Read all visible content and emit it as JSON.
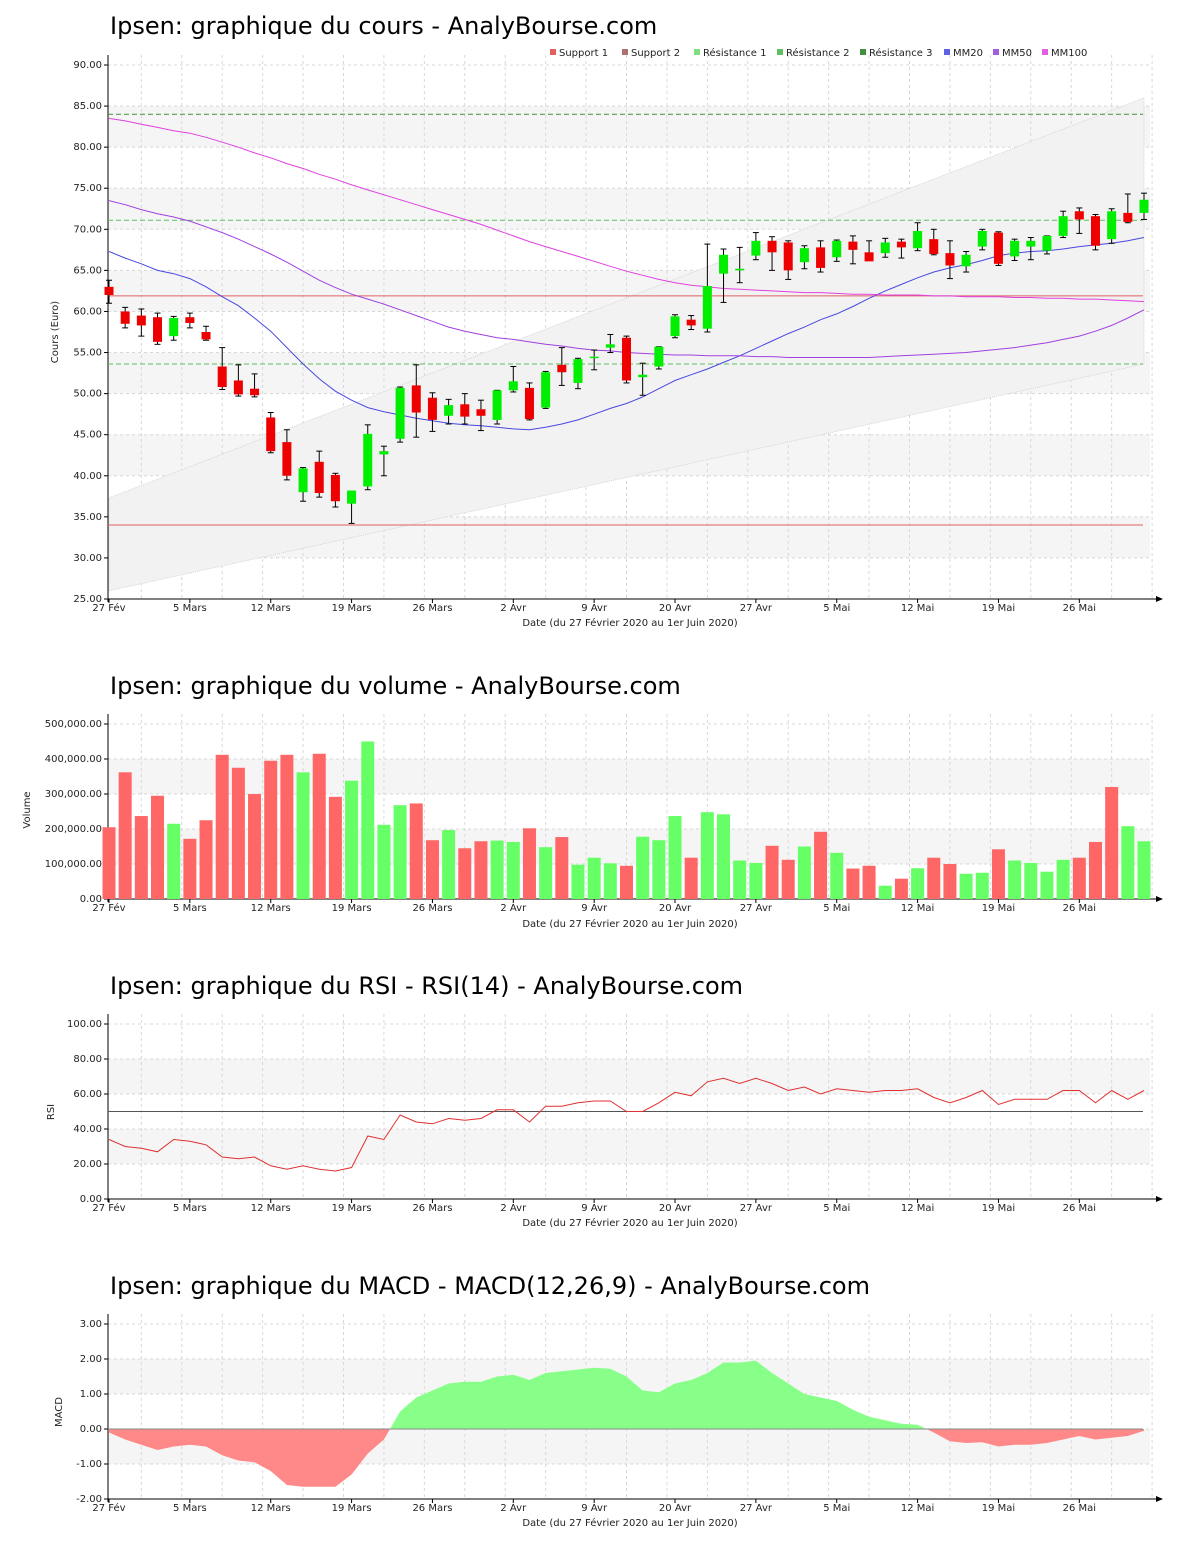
{
  "chart_data": [
    {
      "type": "candlestick",
      "title": "Ipsen: graphique du cours - AnalyBourse.com",
      "xlabel": "Date (du 27 Février 2020 au 1er Juin 2020)",
      "ylabel": "Cours (Euro)",
      "ylim": [
        25,
        90
      ],
      "y_ticks": [
        "25.00",
        "30.00",
        "35.00",
        "40.00",
        "45.00",
        "50.00",
        "55.00",
        "60.00",
        "65.00",
        "70.00",
        "75.00",
        "80.00",
        "85.00",
        "90.00"
      ],
      "x_ticks": [
        {
          "i": 0,
          "label": "27 Fév"
        },
        {
          "i": 5,
          "label": "5 Mars"
        },
        {
          "i": 10,
          "label": "12 Mars"
        },
        {
          "i": 15,
          "label": "19 Mars"
        },
        {
          "i": 20,
          "label": "26 Mars"
        },
        {
          "i": 25,
          "label": "2 Avr"
        },
        {
          "i": 30,
          "label": "9 Avr"
        },
        {
          "i": 35,
          "label": "20 Avr"
        },
        {
          "i": 40,
          "label": "27 Avr"
        },
        {
          "i": 45,
          "label": "5 Mai"
        },
        {
          "i": 50,
          "label": "12 Mai"
        },
        {
          "i": 55,
          "label": "19 Mai"
        },
        {
          "i": 60,
          "label": "26 Mai"
        }
      ],
      "legend": [
        "Support 1",
        "Support 2",
        "Résistance 1",
        "Résistance 2",
        "Résistance 3",
        "MM20",
        "MM50",
        "MM100"
      ],
      "legend_colors": [
        "#e06060",
        "#b07070",
        "#80e080",
        "#60c060",
        "#409040",
        "#6060e0",
        "#a060e0",
        "#e060e0"
      ],
      "up_color": "#00ee00",
      "down_color": "#ee0000",
      "levels": {
        "support_1": 34.0,
        "support_2": 61.9,
        "resistance_1": 53.6,
        "resistance_2": 71.1,
        "resistance_3": 84.0
      },
      "channel": {
        "lower": [
          26.0,
          53.6
        ],
        "upper": [
          37.3,
          86.0
        ]
      },
      "candles": [
        [
          63.0,
          63.8,
          61.0,
          62.0
        ],
        [
          60.0,
          60.5,
          58.0,
          58.5
        ],
        [
          59.5,
          60.3,
          57.0,
          58.3
        ],
        [
          59.3,
          59.8,
          56.0,
          56.3
        ],
        [
          57.0,
          59.4,
          56.5,
          59.2
        ],
        [
          59.3,
          59.8,
          58.0,
          58.6
        ],
        [
          57.5,
          58.2,
          56.5,
          56.6
        ],
        [
          53.3,
          55.6,
          50.5,
          50.8
        ],
        [
          51.6,
          53.5,
          49.7,
          49.9
        ],
        [
          50.6,
          52.4,
          49.6,
          49.8
        ],
        [
          47.1,
          47.7,
          42.8,
          43.0
        ],
        [
          44.1,
          45.6,
          39.5,
          40.0
        ],
        [
          38.0,
          41.0,
          36.9,
          40.9
        ],
        [
          41.7,
          43.0,
          37.4,
          37.9
        ],
        [
          40.1,
          40.3,
          36.2,
          36.9
        ],
        [
          36.6,
          38.1,
          34.2,
          38.2
        ],
        [
          38.7,
          46.2,
          38.3,
          45.1
        ],
        [
          42.6,
          43.6,
          40.0,
          43.0
        ],
        [
          44.5,
          50.8,
          44.1,
          50.7
        ],
        [
          51.0,
          53.5,
          44.7,
          47.7
        ],
        [
          49.5,
          50.1,
          45.4,
          46.8
        ],
        [
          47.3,
          49.3,
          46.3,
          48.6
        ],
        [
          48.7,
          50.0,
          46.3,
          47.2
        ],
        [
          48.1,
          49.2,
          45.5,
          47.3
        ],
        [
          46.8,
          50.4,
          46.3,
          50.4
        ],
        [
          50.4,
          53.3,
          50.2,
          51.5
        ],
        [
          50.7,
          51.3,
          46.8,
          46.9
        ],
        [
          48.3,
          52.7,
          48.2,
          52.6
        ],
        [
          53.5,
          55.6,
          51.0,
          52.6
        ],
        [
          51.3,
          54.3,
          50.6,
          54.2
        ],
        [
          54.5,
          55.3,
          52.9,
          54.5
        ],
        [
          55.6,
          57.2,
          55.0,
          56.0
        ],
        [
          56.8,
          57.0,
          51.3,
          51.6
        ],
        [
          52.0,
          53.7,
          49.8,
          52.3
        ],
        [
          53.3,
          55.7,
          53.0,
          55.7
        ],
        [
          57.0,
          59.6,
          56.8,
          59.4
        ],
        [
          59.0,
          59.5,
          57.8,
          58.3
        ],
        [
          57.9,
          68.2,
          57.5,
          63.1
        ],
        [
          64.6,
          67.6,
          61.1,
          66.9
        ],
        [
          65.0,
          67.8,
          63.5,
          65.2
        ],
        [
          66.8,
          69.6,
          66.3,
          68.6
        ],
        [
          68.6,
          69.1,
          65.0,
          67.2
        ],
        [
          68.4,
          68.6,
          63.9,
          65.0
        ],
        [
          66.0,
          68.0,
          65.2,
          67.7
        ],
        [
          67.8,
          68.6,
          64.8,
          65.3
        ],
        [
          66.6,
          68.7,
          66.1,
          68.6
        ],
        [
          68.5,
          69.2,
          65.8,
          67.5
        ],
        [
          67.2,
          68.6,
          66.2,
          66.1
        ],
        [
          67.1,
          68.9,
          66.6,
          68.4
        ],
        [
          68.5,
          68.8,
          66.5,
          67.8
        ],
        [
          67.7,
          70.8,
          67.4,
          69.8
        ],
        [
          68.8,
          70.0,
          66.9,
          67.0
        ],
        [
          67.1,
          68.6,
          64.0,
          65.6
        ],
        [
          65.5,
          67.3,
          64.8,
          66.9
        ],
        [
          67.9,
          70.0,
          67.5,
          69.8
        ],
        [
          69.6,
          69.7,
          65.6,
          65.8
        ],
        [
          66.7,
          68.8,
          66.2,
          68.6
        ],
        [
          67.9,
          69.0,
          66.3,
          68.6
        ],
        [
          67.4,
          69.2,
          67.0,
          69.2
        ],
        [
          69.2,
          72.2,
          69.0,
          71.6
        ],
        [
          72.2,
          72.6,
          69.5,
          71.2
        ],
        [
          71.6,
          71.8,
          67.5,
          68.0
        ],
        [
          68.8,
          72.5,
          68.3,
          72.2
        ],
        [
          72.0,
          74.3,
          70.8,
          70.9
        ],
        [
          72.0,
          74.4,
          71.2,
          73.6
        ]
      ],
      "series": [
        {
          "name": "MM20",
          "color": "#4848e0",
          "values": [
            67.3,
            66.5,
            65.8,
            65.0,
            64.6,
            64.0,
            63.0,
            61.8,
            60.7,
            59.2,
            57.6,
            55.6,
            53.6,
            51.8,
            50.3,
            49.2,
            48.3,
            47.8,
            47.4,
            47.0,
            46.7,
            46.4,
            46.2,
            46.1,
            45.9,
            45.7,
            45.6,
            45.9,
            46.3,
            46.8,
            47.5,
            48.2,
            48.8,
            49.6,
            50.6,
            51.6,
            52.3,
            53.0,
            53.8,
            54.6,
            55.5,
            56.4,
            57.3,
            58.1,
            59.0,
            59.7,
            60.6,
            61.6,
            62.5,
            63.3,
            64.1,
            64.8,
            65.3,
            65.7,
            66.2,
            66.8,
            67.1,
            67.3,
            67.4,
            67.6,
            67.9,
            68.1,
            68.3,
            68.6,
            69.0
          ]
        },
        {
          "name": "MM50",
          "color": "#a040e0",
          "values": [
            73.5,
            73.0,
            72.4,
            71.9,
            71.5,
            71.0,
            70.3,
            69.6,
            68.8,
            67.9,
            67.0,
            66.0,
            64.9,
            63.8,
            62.9,
            62.1,
            61.5,
            60.9,
            60.2,
            59.5,
            58.8,
            58.1,
            57.6,
            57.2,
            56.8,
            56.6,
            56.3,
            56.0,
            55.8,
            55.5,
            55.3,
            55.2,
            55.0,
            54.9,
            54.8,
            54.7,
            54.7,
            54.6,
            54.6,
            54.6,
            54.5,
            54.5,
            54.4,
            54.4,
            54.4,
            54.4,
            54.4,
            54.4,
            54.5,
            54.6,
            54.7,
            54.8,
            54.9,
            55.0,
            55.2,
            55.4,
            55.6,
            55.9,
            56.2,
            56.6,
            57.0,
            57.6,
            58.3,
            59.2,
            60.2
          ]
        },
        {
          "name": "MM100",
          "color": "#e040e0",
          "values": [
            83.5,
            83.2,
            82.8,
            82.4,
            82.0,
            81.7,
            81.2,
            80.6,
            80.0,
            79.3,
            78.7,
            78.0,
            77.4,
            76.7,
            76.1,
            75.4,
            74.8,
            74.2,
            73.6,
            73.0,
            72.4,
            71.8,
            71.2,
            70.6,
            69.9,
            69.2,
            68.5,
            67.9,
            67.3,
            66.7,
            66.1,
            65.5,
            64.9,
            64.4,
            63.9,
            63.5,
            63.2,
            63.0,
            62.8,
            62.7,
            62.6,
            62.5,
            62.4,
            62.3,
            62.3,
            62.2,
            62.1,
            62.1,
            62.0,
            62.0,
            62.0,
            61.9,
            61.9,
            61.8,
            61.8,
            61.8,
            61.7,
            61.7,
            61.6,
            61.6,
            61.5,
            61.5,
            61.4,
            61.3,
            61.2
          ]
        }
      ]
    },
    {
      "type": "bar",
      "title": "Ipsen: graphique du volume - AnalyBourse.com",
      "xlabel": "Date (du 27 Février 2020 au 1er Juin 2020)",
      "ylabel": "Volume",
      "ylim": [
        0,
        500000
      ],
      "y_ticks": [
        "0.00",
        "100,000.00",
        "200,000.00",
        "300,000.00",
        "400,000.00",
        "500,000.00"
      ],
      "values": [
        205000,
        362000,
        237000,
        295000,
        215000,
        172000,
        225000,
        412000,
        375000,
        300000,
        395000,
        412000,
        362000,
        415000,
        292000,
        338000,
        450000,
        212000,
        268000,
        273000,
        168000,
        197000,
        145000,
        165000,
        167000,
        163000,
        202000,
        148000,
        177000,
        98000,
        118000,
        102000,
        95000,
        178000,
        168000,
        237000,
        118000,
        248000,
        242000,
        110000,
        103000,
        152000,
        112000,
        150000,
        192000,
        132000,
        87000,
        95000,
        38000,
        58000,
        88000,
        118000,
        100000,
        72000,
        75000,
        142000,
        110000,
        103000,
        78000,
        112000,
        118000,
        163000,
        320000,
        208000,
        165000
      ],
      "colors": [
        "d",
        "d",
        "d",
        "d",
        "u",
        "d",
        "d",
        "d",
        "d",
        "d",
        "d",
        "d",
        "u",
        "d",
        "d",
        "u",
        "u",
        "u",
        "u",
        "d",
        "d",
        "u",
        "d",
        "d",
        "u",
        "u",
        "d",
        "u",
        "d",
        "u",
        "u",
        "u",
        "d",
        "u",
        "u",
        "u",
        "d",
        "u",
        "u",
        "u",
        "u",
        "d",
        "d",
        "u",
        "d",
        "u",
        "d",
        "d",
        "u",
        "d",
        "u",
        "d",
        "d",
        "u",
        "u",
        "d",
        "u",
        "u",
        "u",
        "u",
        "d",
        "d",
        "d",
        "u",
        "u"
      ]
    },
    {
      "type": "line",
      "title": "Ipsen: graphique du RSI - RSI(14) - AnalyBourse.com",
      "xlabel": "Date (du 27 Février 2020 au 1er Juin 2020)",
      "ylabel": "RSI",
      "ylim": [
        0,
        100
      ],
      "y_ticks": [
        "0.00",
        "20.00",
        "40.00",
        "60.00",
        "80.00",
        "100.00"
      ],
      "reference_line": 50,
      "series": [
        {
          "name": "RSI",
          "color": "#e03030",
          "values": [
            34,
            30,
            29,
            27,
            34,
            33,
            31,
            24,
            23,
            24,
            19,
            17,
            19,
            17,
            16,
            18,
            36,
            34,
            48,
            44,
            43,
            46,
            45,
            46,
            51,
            51,
            44,
            53,
            53,
            55,
            56,
            56,
            50,
            50,
            55,
            61,
            59,
            67,
            69,
            66,
            69,
            66,
            62,
            64,
            60,
            63,
            62,
            61,
            62,
            62,
            63,
            58,
            55,
            58,
            62,
            54,
            57,
            57,
            57,
            62,
            62,
            55,
            62,
            57,
            62
          ]
        }
      ]
    },
    {
      "type": "area",
      "title": "Ipsen: graphique du MACD - MACD(12,26,9) - AnalyBourse.com",
      "xlabel": "Date (du 27 Février 2020 au 1er Juin 2020)",
      "ylabel": "MACD",
      "ylim": [
        -2,
        3
      ],
      "y_ticks": [
        "-2.00",
        "-1.00",
        "0.00",
        "1.00",
        "2.00",
        "3.00"
      ],
      "pos_color": "#88ff88",
      "neg_color": "#ff8888",
      "series": [
        {
          "name": "MACD",
          "values": [
            -0.1,
            -0.3,
            -0.45,
            -0.6,
            -0.5,
            -0.45,
            -0.5,
            -0.75,
            -0.9,
            -0.95,
            -1.2,
            -1.6,
            -1.65,
            -1.65,
            -1.65,
            -1.3,
            -0.7,
            -0.3,
            0.5,
            0.9,
            1.1,
            1.3,
            1.35,
            1.35,
            1.5,
            1.55,
            1.4,
            1.6,
            1.65,
            1.7,
            1.75,
            1.72,
            1.5,
            1.1,
            1.05,
            1.3,
            1.4,
            1.6,
            1.9,
            1.9,
            1.95,
            1.6,
            1.3,
            1.0,
            0.9,
            0.8,
            0.55,
            0.35,
            0.25,
            0.15,
            0.12,
            -0.1,
            -0.35,
            -0.4,
            -0.38,
            -0.5,
            -0.45,
            -0.45,
            -0.4,
            -0.3,
            -0.2,
            -0.3,
            -0.25,
            -0.2,
            -0.05
          ]
        }
      ]
    }
  ]
}
